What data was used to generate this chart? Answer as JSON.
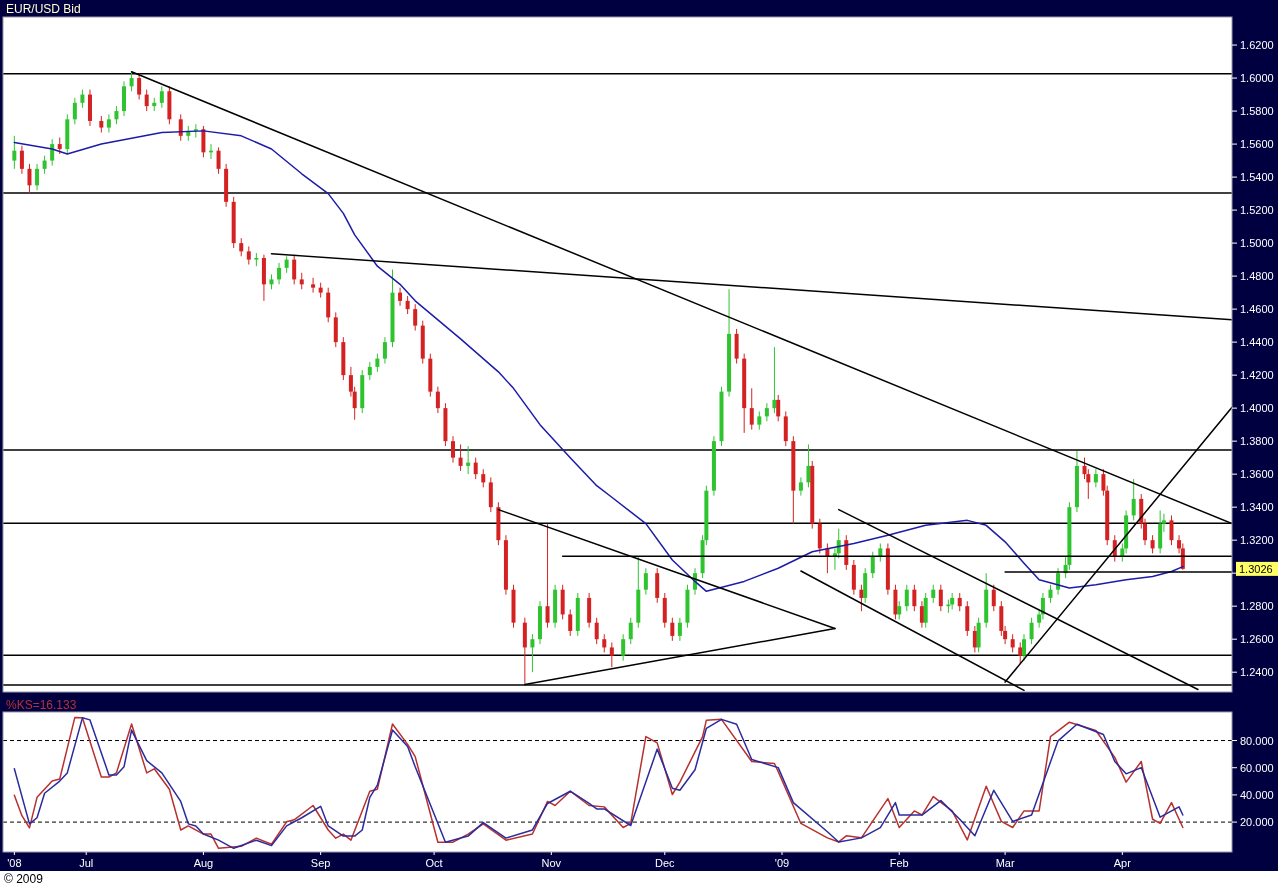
{
  "chart_data": [
    {
      "type": "candlestick",
      "title": "EUR/USD Bid",
      "tick_labels": "y",
      "x": [
        "2008-06-12",
        "2008-06-14",
        "2008-06-16",
        "2008-06-18",
        "2008-06-20",
        "2008-06-22",
        "2008-06-24",
        "2008-06-26",
        "2008-06-28",
        "2008-06-30",
        "2008-07-02",
        "2008-07-05",
        "2008-07-07",
        "2008-07-09",
        "2008-07-11",
        "2008-07-13",
        "2008-07-15",
        "2008-07-17",
        "2008-07-19",
        "2008-07-21",
        "2008-07-23",
        "2008-07-26",
        "2008-07-28",
        "2008-07-30",
        "2008-08-01",
        "2008-08-03",
        "2008-08-05",
        "2008-08-07",
        "2008-08-09",
        "2008-08-11",
        "2008-08-13",
        "2008-08-15",
        "2008-08-17",
        "2008-08-19",
        "2008-08-21",
        "2008-08-23",
        "2008-08-25",
        "2008-08-27",
        "2008-08-30",
        "2008-09-01",
        "2008-09-03",
        "2008-09-05",
        "2008-09-07",
        "2008-09-09",
        "2008-09-10",
        "2008-09-12",
        "2008-09-14",
        "2008-09-16",
        "2008-09-18",
        "2008-09-20",
        "2008-09-22",
        "2008-09-24",
        "2008-09-26",
        "2008-09-28",
        "2008-09-30",
        "2008-10-02",
        "2008-10-04",
        "2008-10-06",
        "2008-10-08",
        "2008-10-10",
        "2008-10-12",
        "2008-10-14",
        "2008-10-16",
        "2008-10-18",
        "2008-10-20",
        "2008-10-22",
        "2008-10-25",
        "2008-10-27",
        "2008-10-29",
        "2008-10-31",
        "2008-11-02",
        "2008-11-04",
        "2008-11-06",
        "2008-11-08",
        "2008-11-11",
        "2008-11-13",
        "2008-11-15",
        "2008-11-17",
        "2008-11-20",
        "2008-11-22",
        "2008-11-24",
        "2008-11-26",
        "2008-11-29",
        "2008-12-01",
        "2008-12-03",
        "2008-12-05",
        "2008-12-07",
        "2008-12-09",
        "2008-12-11",
        "2008-12-12",
        "2008-12-14",
        "2008-12-16",
        "2008-12-18",
        "2008-12-20",
        "2008-12-22",
        "2008-12-24",
        "2008-12-26",
        "2008-12-28",
        "2008-12-30",
        "2008-12-31",
        "2009-01-02",
        "2009-01-04",
        "2009-01-06",
        "2009-01-08",
        "2009-01-09",
        "2009-01-11",
        "2009-01-13",
        "2009-01-15",
        "2009-01-16",
        "2009-01-18",
        "2009-01-20",
        "2009-01-22",
        "2009-01-23",
        "2009-01-25",
        "2009-01-27",
        "2009-01-29",
        "2009-01-31",
        "2009-02-01",
        "2009-02-03",
        "2009-02-05",
        "2009-02-07",
        "2009-02-08",
        "2009-02-10",
        "2009-02-12",
        "2009-02-14",
        "2009-02-15",
        "2009-02-17",
        "2009-02-19",
        "2009-02-21",
        "2009-02-22",
        "2009-02-24",
        "2009-02-26",
        "2009-02-28",
        "2009-03-01",
        "2009-03-03",
        "2009-03-05",
        "2009-03-06",
        "2009-03-08",
        "2009-03-10",
        "2009-03-11",
        "2009-03-13",
        "2009-03-15",
        "2009-03-17",
        "2009-03-18",
        "2009-03-20",
        "2009-03-22",
        "2009-03-23",
        "2009-03-25",
        "2009-03-27",
        "2009-03-28",
        "2009-03-30",
        "2009-04-01",
        "2009-04-02",
        "2009-04-04",
        "2009-04-06",
        "2009-04-07",
        "2009-04-09",
        "2009-04-11",
        "2009-04-12",
        "2009-04-14",
        "2009-04-16",
        "2009-04-17"
      ],
      "ohlc": [
        [
          1.55,
          1.565,
          1.545,
          1.556
        ],
        [
          1.556,
          1.559,
          1.542,
          1.545
        ],
        [
          1.545,
          1.548,
          1.53,
          1.535
        ],
        [
          1.535,
          1.548,
          1.532,
          1.545
        ],
        [
          1.545,
          1.553,
          1.542,
          1.55
        ],
        [
          1.55,
          1.563,
          1.547,
          1.56
        ],
        [
          1.56,
          1.564,
          1.554,
          1.557
        ],
        [
          1.557,
          1.578,
          1.554,
          1.575
        ],
        [
          1.575,
          1.588,
          1.572,
          1.585
        ],
        [
          1.585,
          1.593,
          1.582,
          1.59
        ],
        [
          1.59,
          1.593,
          1.571,
          1.574
        ],
        [
          1.574,
          1.577,
          1.567,
          1.57
        ],
        [
          1.57,
          1.578,
          1.567,
          1.575
        ],
        [
          1.575,
          1.583,
          1.572,
          1.58
        ],
        [
          1.58,
          1.598,
          1.577,
          1.595
        ],
        [
          1.595,
          1.6038,
          1.592,
          1.6
        ],
        [
          1.6,
          1.603,
          1.587,
          1.59
        ],
        [
          1.59,
          1.593,
          1.58,
          1.583
        ],
        [
          1.583,
          1.588,
          1.58,
          1.585
        ],
        [
          1.585,
          1.595,
          1.582,
          1.592
        ],
        [
          1.592,
          1.595,
          1.572,
          1.575
        ],
        [
          1.575,
          1.578,
          1.562,
          1.565
        ],
        [
          1.565,
          1.571,
          1.562,
          1.568
        ],
        [
          1.568,
          1.572,
          1.564,
          1.569
        ],
        [
          1.569,
          1.571,
          1.552,
          1.555
        ],
        [
          1.555,
          1.56,
          1.551,
          1.556
        ],
        [
          1.556,
          1.558,
          1.542,
          1.545
        ],
        [
          1.545,
          1.548,
          1.522,
          1.525
        ],
        [
          1.525,
          1.528,
          1.497,
          1.5
        ],
        [
          1.5,
          1.503,
          1.492,
          1.495
        ],
        [
          1.495,
          1.498,
          1.487,
          1.49
        ],
        [
          1.49,
          1.494,
          1.486,
          1.491
        ],
        [
          1.491,
          1.493,
          1.465,
          1.475
        ],
        [
          1.475,
          1.481,
          1.472,
          1.478
        ],
        [
          1.478,
          1.488,
          1.475,
          1.485
        ],
        [
          1.485,
          1.492,
          1.482,
          1.49
        ],
        [
          1.49,
          1.493,
          1.475,
          1.478
        ],
        [
          1.478,
          1.482,
          1.472,
          1.475
        ],
        [
          1.475,
          1.479,
          1.47,
          1.473
        ],
        [
          1.473,
          1.476,
          1.467,
          1.47
        ],
        [
          1.47,
          1.473,
          1.452,
          1.455
        ],
        [
          1.455,
          1.458,
          1.437,
          1.44
        ],
        [
          1.44,
          1.443,
          1.417,
          1.42
        ],
        [
          1.42,
          1.425,
          1.407,
          1.41
        ],
        [
          1.41,
          1.413,
          1.393,
          1.4
        ],
        [
          1.4,
          1.423,
          1.397,
          1.42
        ],
        [
          1.42,
          1.428,
          1.417,
          1.425
        ],
        [
          1.425,
          1.433,
          1.422,
          1.43
        ],
        [
          1.43,
          1.443,
          1.427,
          1.44
        ],
        [
          1.44,
          1.484,
          1.437,
          1.47
        ],
        [
          1.47,
          1.473,
          1.462,
          1.465
        ],
        [
          1.465,
          1.468,
          1.457,
          1.46
        ],
        [
          1.46,
          1.463,
          1.447,
          1.45
        ],
        [
          1.45,
          1.453,
          1.427,
          1.43
        ],
        [
          1.43,
          1.433,
          1.407,
          1.41
        ],
        [
          1.41,
          1.413,
          1.397,
          1.4
        ],
        [
          1.4,
          1.403,
          1.377,
          1.38
        ],
        [
          1.38,
          1.383,
          1.367,
          1.37
        ],
        [
          1.37,
          1.378,
          1.362,
          1.365
        ],
        [
          1.365,
          1.377,
          1.36,
          1.367
        ],
        [
          1.367,
          1.37,
          1.357,
          1.36
        ],
        [
          1.36,
          1.363,
          1.352,
          1.355
        ],
        [
          1.355,
          1.358,
          1.337,
          1.34
        ],
        [
          1.34,
          1.343,
          1.317,
          1.32
        ],
        [
          1.32,
          1.323,
          1.287,
          1.29
        ],
        [
          1.29,
          1.293,
          1.267,
          1.27
        ],
        [
          1.27,
          1.273,
          1.233,
          1.255
        ],
        [
          1.255,
          1.263,
          1.24,
          1.26
        ],
        [
          1.26,
          1.283,
          1.257,
          1.28
        ],
        [
          1.28,
          1.33,
          1.267,
          1.27
        ],
        [
          1.27,
          1.293,
          1.267,
          1.29
        ],
        [
          1.29,
          1.293,
          1.272,
          1.275
        ],
        [
          1.275,
          1.278,
          1.262,
          1.265
        ],
        [
          1.265,
          1.288,
          1.262,
          1.285
        ],
        [
          1.285,
          1.288,
          1.267,
          1.27
        ],
        [
          1.27,
          1.273,
          1.257,
          1.26
        ],
        [
          1.26,
          1.263,
          1.252,
          1.255
        ],
        [
          1.255,
          1.258,
          1.243,
          1.25
        ],
        [
          1.25,
          1.263,
          1.247,
          1.26
        ],
        [
          1.26,
          1.273,
          1.257,
          1.27
        ],
        [
          1.27,
          1.31,
          1.267,
          1.29
        ],
        [
          1.29,
          1.303,
          1.287,
          1.3
        ],
        [
          1.3,
          1.303,
          1.282,
          1.285
        ],
        [
          1.285,
          1.288,
          1.267,
          1.27
        ],
        [
          1.27,
          1.273,
          1.259,
          1.262
        ],
        [
          1.262,
          1.273,
          1.259,
          1.27
        ],
        [
          1.27,
          1.293,
          1.267,
          1.29
        ],
        [
          1.29,
          1.303,
          1.287,
          1.3
        ],
        [
          1.3,
          1.323,
          1.297,
          1.32
        ],
        [
          1.32,
          1.353,
          1.317,
          1.35
        ],
        [
          1.35,
          1.383,
          1.347,
          1.38
        ],
        [
          1.38,
          1.413,
          1.377,
          1.41
        ],
        [
          1.41,
          1.472,
          1.407,
          1.445
        ],
        [
          1.445,
          1.448,
          1.427,
          1.43
        ],
        [
          1.43,
          1.433,
          1.385,
          1.4
        ],
        [
          1.4,
          1.412,
          1.387,
          1.39
        ],
        [
          1.39,
          1.398,
          1.387,
          1.395
        ],
        [
          1.395,
          1.403,
          1.392,
          1.4
        ],
        [
          1.4,
          1.437,
          1.397,
          1.405
        ],
        [
          1.405,
          1.408,
          1.392,
          1.395
        ],
        [
          1.395,
          1.398,
          1.377,
          1.38
        ],
        [
          1.38,
          1.383,
          1.33,
          1.35
        ],
        [
          1.35,
          1.358,
          1.347,
          1.355
        ],
        [
          1.355,
          1.378,
          1.352,
          1.365
        ],
        [
          1.365,
          1.368,
          1.327,
          1.33
        ],
        [
          1.33,
          1.333,
          1.312,
          1.315
        ],
        [
          1.315,
          1.318,
          1.3,
          1.31
        ],
        [
          1.31,
          1.315,
          1.302,
          1.312
        ],
        [
          1.312,
          1.327,
          1.309,
          1.32
        ],
        [
          1.32,
          1.323,
          1.302,
          1.305
        ],
        [
          1.305,
          1.308,
          1.287,
          1.29
        ],
        [
          1.29,
          1.293,
          1.277,
          1.285
        ],
        [
          1.285,
          1.303,
          1.282,
          1.3
        ],
        [
          1.3,
          1.313,
          1.297,
          1.31
        ],
        [
          1.31,
          1.318,
          1.307,
          1.315
        ],
        [
          1.315,
          1.318,
          1.287,
          1.29
        ],
        [
          1.29,
          1.293,
          1.272,
          1.275
        ],
        [
          1.275,
          1.283,
          1.272,
          1.28
        ],
        [
          1.28,
          1.293,
          1.277,
          1.29
        ],
        [
          1.29,
          1.293,
          1.277,
          1.28
        ],
        [
          1.28,
          1.283,
          1.267,
          1.27
        ],
        [
          1.27,
          1.288,
          1.267,
          1.285
        ],
        [
          1.285,
          1.293,
          1.282,
          1.29
        ],
        [
          1.29,
          1.293,
          1.277,
          1.28
        ],
        [
          1.28,
          1.284,
          1.276,
          1.281
        ],
        [
          1.281,
          1.288,
          1.278,
          1.285
        ],
        [
          1.285,
          1.288,
          1.277,
          1.28
        ],
        [
          1.28,
          1.283,
          1.262,
          1.265
        ],
        [
          1.265,
          1.268,
          1.252,
          1.255
        ],
        [
          1.255,
          1.273,
          1.252,
          1.27
        ],
        [
          1.27,
          1.3,
          1.267,
          1.29
        ],
        [
          1.29,
          1.293,
          1.277,
          1.28
        ],
        [
          1.28,
          1.283,
          1.262,
          1.265
        ],
        [
          1.265,
          1.268,
          1.257,
          1.26
        ],
        [
          1.26,
          1.263,
          1.252,
          1.255
        ],
        [
          1.255,
          1.258,
          1.245,
          1.25
        ],
        [
          1.25,
          1.263,
          1.247,
          1.26
        ],
        [
          1.26,
          1.273,
          1.257,
          1.27
        ],
        [
          1.27,
          1.278,
          1.267,
          1.275
        ],
        [
          1.275,
          1.288,
          1.272,
          1.285
        ],
        [
          1.285,
          1.293,
          1.282,
          1.29
        ],
        [
          1.29,
          1.303,
          1.287,
          1.3
        ],
        [
          1.3,
          1.31,
          1.297,
          1.305
        ],
        [
          1.305,
          1.343,
          1.302,
          1.34
        ],
        [
          1.34,
          1.374,
          1.337,
          1.365
        ],
        [
          1.365,
          1.37,
          1.357,
          1.36
        ],
        [
          1.36,
          1.363,
          1.345,
          1.355
        ],
        [
          1.355,
          1.363,
          1.352,
          1.36
        ],
        [
          1.36,
          1.363,
          1.347,
          1.35
        ],
        [
          1.35,
          1.353,
          1.317,
          1.32
        ],
        [
          1.32,
          1.323,
          1.307,
          1.31
        ],
        [
          1.31,
          1.318,
          1.307,
          1.315
        ],
        [
          1.315,
          1.338,
          1.312,
          1.335
        ],
        [
          1.335,
          1.357,
          1.332,
          1.345
        ],
        [
          1.345,
          1.348,
          1.327,
          1.33
        ],
        [
          1.33,
          1.333,
          1.317,
          1.32
        ],
        [
          1.32,
          1.323,
          1.312,
          1.315
        ],
        [
          1.315,
          1.338,
          1.312,
          1.33
        ],
        [
          1.33,
          1.336,
          1.325,
          1.332
        ],
        [
          1.332,
          1.335,
          1.317,
          1.32
        ],
        [
          1.32,
          1.323,
          1.312,
          1.315
        ],
        [
          1.315,
          1.318,
          1.302,
          1.3026
        ]
      ],
      "series": [
        {
          "type": "line",
          "color": "#1c1ca8",
          "x": [
            "2008-06-12",
            "2008-06-22",
            "2008-06-26",
            "2008-07-05",
            "2008-07-21",
            "2008-08-01",
            "2008-08-11",
            "2008-08-19",
            "2008-08-27",
            "2008-09-03",
            "2008-09-07",
            "2008-09-10",
            "2008-09-16",
            "2008-09-22",
            "2008-09-26",
            "2008-10-08",
            "2008-10-18",
            "2008-10-22",
            "2008-10-29",
            "2008-11-06",
            "2008-11-13",
            "2008-11-17",
            "2008-11-26",
            "2008-12-03",
            "2008-12-09",
            "2008-12-12",
            "2008-12-22",
            "2008-12-31",
            "2009-01-09",
            "2009-01-20",
            "2009-01-29",
            "2009-02-08",
            "2009-02-19",
            "2009-02-24",
            "2009-03-01",
            "2009-03-06",
            "2009-03-10",
            "2009-03-18",
            "2009-03-25",
            "2009-04-02",
            "2009-04-09",
            "2009-04-14",
            "2009-04-17"
          ],
          "values": [
            1.561,
            1.557,
            1.554,
            1.56,
            1.567,
            1.568,
            1.565,
            1.557,
            1.542,
            1.53,
            1.518,
            1.505,
            1.486,
            1.475,
            1.465,
            1.442,
            1.422,
            1.412,
            1.39,
            1.37,
            1.353,
            1.346,
            1.33,
            1.308,
            1.295,
            1.289,
            1.295,
            1.303,
            1.313,
            1.318,
            1.323,
            1.329,
            1.332,
            1.329,
            1.319,
            1.306,
            1.296,
            1.291,
            1.293,
            1.296,
            1.298,
            1.301,
            1.304
          ]
        },
        {
          "type": "line",
          "color": "#000000",
          "x": [
            "2008-07-13",
            "2009-04-30"
          ],
          "values": [
            1.6038,
            1.33
          ]
        },
        {
          "type": "line",
          "color": "#000000",
          "x": [
            "2008-08-19",
            "2009-04-30"
          ],
          "values": [
            1.4935,
            1.4535
          ]
        },
        {
          "type": "line",
          "color": "#000000",
          "x": [
            "2008-10-18",
            "2009-01-15"
          ],
          "values": [
            1.3385,
            1.2665
          ]
        },
        {
          "type": "line",
          "color": "#000000",
          "x": [
            "2008-10-25",
            "2009-01-15"
          ],
          "values": [
            1.2325,
            1.2665
          ]
        },
        {
          "type": "line",
          "color": "#000000",
          "x": [
            "2008-11-04",
            "2009-04-30"
          ],
          "values": [
            1.3103,
            1.3103
          ]
        },
        {
          "type": "line",
          "color": "#000000",
          "x": [
            "2009-03-01",
            "2009-04-30"
          ],
          "values": [
            1.3007,
            1.3007
          ]
        },
        {
          "type": "line",
          "color": "#000000",
          "x": [
            "2009-01-16",
            "2009-04-21"
          ],
          "values": [
            1.3385,
            1.2295
          ]
        },
        {
          "type": "line",
          "color": "#000000",
          "x": [
            "2009-01-06",
            "2009-03-06"
          ],
          "values": [
            1.3013,
            1.229
          ]
        },
        {
          "type": "line",
          "color": "#000000",
          "x": [
            "2009-03-01",
            "2009-04-30"
          ],
          "values": [
            1.234,
            1.4005
          ]
        }
      ],
      "ref_lines": [
        {
          "axis": "y",
          "value": 1.6026,
          "color": "#000000"
        },
        {
          "axis": "y",
          "value": 1.5304,
          "color": "#000000"
        },
        {
          "axis": "y",
          "value": 1.3747,
          "color": "#000000"
        },
        {
          "axis": "y",
          "value": 1.3302,
          "color": "#000000"
        },
        {
          "axis": "y",
          "value": 1.2502,
          "color": "#000000"
        },
        {
          "axis": "y",
          "value": 1.2322,
          "color": "#000000"
        }
      ],
      "xlim": [
        "2008-06-09",
        "2009-04-30"
      ],
      "ylim": [
        1.228,
        1.637
      ],
      "yticks": [
        {
          "value": 1.24,
          "label": "1.2400"
        },
        {
          "value": 1.26,
          "label": "1.2600"
        },
        {
          "value": 1.28,
          "label": "1.2800"
        },
        {
          "value": 1.3,
          "label": null
        },
        {
          "value": 1.32,
          "label": "1.3200"
        },
        {
          "value": 1.34,
          "label": "1.3400"
        },
        {
          "value": 1.36,
          "label": "1.3600"
        },
        {
          "value": 1.38,
          "label": "1.3800"
        },
        {
          "value": 1.4,
          "label": "1.4000"
        },
        {
          "value": 1.42,
          "label": "1.4200"
        },
        {
          "value": 1.44,
          "label": "1.4400"
        },
        {
          "value": 1.46,
          "label": "1.4600"
        },
        {
          "value": 1.48,
          "label": "1.4800"
        },
        {
          "value": 1.5,
          "label": "1.5000"
        },
        {
          "value": 1.52,
          "label": "1.5200"
        },
        {
          "value": 1.54,
          "label": "1.5400"
        },
        {
          "value": 1.56,
          "label": "1.5600"
        },
        {
          "value": 1.58,
          "label": "1.5800"
        },
        {
          "value": 1.6,
          "label": "1.6000"
        },
        {
          "value": 1.62,
          "label": "1.6200"
        }
      ],
      "annotations": [
        "1.3026"
      ]
    },
    {
      "type": "line",
      "series": [
        {
          "name": "%KS=16.133",
          "color": "#b8312f",
          "x": [
            "2008-06-12",
            "2008-06-14",
            "2008-06-16",
            "2008-06-18",
            "2008-06-22",
            "2008-06-24",
            "2008-06-28",
            "2008-06-30",
            "2008-07-05",
            "2008-07-07",
            "2008-07-09",
            "2008-07-13",
            "2008-07-17",
            "2008-07-19",
            "2008-07-23",
            "2008-07-26",
            "2008-07-28",
            "2008-08-01",
            "2008-08-03",
            "2008-08-05",
            "2008-08-11",
            "2008-08-15",
            "2008-08-19",
            "2008-08-23",
            "2008-08-25",
            "2008-08-30",
            "2008-09-03",
            "2008-09-05",
            "2008-09-07",
            "2008-09-09",
            "2008-09-14",
            "2008-09-16",
            "2008-09-20",
            "2008-09-24",
            "2008-09-26",
            "2008-10-02",
            "2008-10-06",
            "2008-10-10",
            "2008-10-14",
            "2008-10-20",
            "2008-10-27",
            "2008-10-31",
            "2008-11-02",
            "2008-11-06",
            "2008-11-11",
            "2008-11-15",
            "2008-11-20",
            "2008-11-22",
            "2008-11-26",
            "2008-11-29",
            "2008-12-03",
            "2008-12-05",
            "2008-12-11",
            "2008-12-12",
            "2008-12-16",
            "2008-12-24",
            "2008-12-30",
            "2008-12-31",
            "2009-01-06",
            "2009-01-13",
            "2009-01-16",
            "2009-01-18",
            "2009-01-22",
            "2009-01-29",
            "2009-02-01",
            "2009-02-05",
            "2009-02-07",
            "2009-02-10",
            "2009-02-15",
            "2009-02-19",
            "2009-02-24",
            "2009-02-28",
            "2009-03-03",
            "2009-03-06",
            "2009-03-10",
            "2009-03-13",
            "2009-03-18",
            "2009-03-25",
            "2009-03-30",
            "2009-04-02",
            "2009-04-06",
            "2009-04-09",
            "2009-04-11",
            "2009-04-14",
            "2009-04-17"
          ],
          "values": [
            39.7,
            24.7,
            15.7,
            38.2,
            50.2,
            51.7,
            97,
            96.7,
            53.2,
            53.2,
            56.2,
            92.2,
            56.2,
            59.2,
            44.2,
            14.2,
            17.2,
            11.2,
            11.2,
            0.7,
            2.2,
            8.2,
            3.7,
            20.2,
            21.7,
            32.2,
            14.2,
            8.2,
            11.2,
            6.7,
            42.7,
            44.2,
            92.2,
            77.2,
            68.2,
            5.2,
            5.2,
            11.2,
            18.7,
            6.7,
            11.2,
            35.2,
            32.2,
            42.7,
            32.2,
            31.2,
            16,
            19,
            82.9,
            78.3,
            40.3,
            49.4,
            82.9,
            95,
            95.6,
            64.6,
            63.1,
            57,
            19,
            8.4,
            5.4,
            9.9,
            8.4,
            37.3,
            16,
            28.2,
            25.2,
            38.8,
            28.2,
            6.9,
            46.4,
            20.5,
            16,
            28.2,
            28.2,
            82.9,
            93.5,
            87.4,
            67.6,
            49.4,
            64.6,
            22.1,
            19,
            34.3,
            16
          ]
        },
        {
          "color": "#2b2b9e",
          "x": [
            "2008-06-12",
            "2008-06-16",
            "2008-06-18",
            "2008-06-20",
            "2008-06-24",
            "2008-06-26",
            "2008-06-30",
            "2008-07-02",
            "2008-07-07",
            "2008-07-09",
            "2008-07-11",
            "2008-07-13",
            "2008-07-17",
            "2008-07-21",
            "2008-07-26",
            "2008-07-28",
            "2008-07-30",
            "2008-08-01",
            "2008-08-05",
            "2008-08-09",
            "2008-08-15",
            "2008-08-19",
            "2008-08-23",
            "2008-08-27",
            "2008-09-01",
            "2008-09-03",
            "2008-09-07",
            "2008-09-10",
            "2008-09-12",
            "2008-09-14",
            "2008-09-16",
            "2008-09-20",
            "2008-09-24",
            "2008-09-26",
            "2008-10-04",
            "2008-10-10",
            "2008-10-14",
            "2008-10-20",
            "2008-10-27",
            "2008-10-31",
            "2008-11-06",
            "2008-11-11",
            "2008-11-13",
            "2008-11-15",
            "2008-11-22",
            "2008-11-29",
            "2008-12-03",
            "2008-12-05",
            "2008-12-09",
            "2008-12-12",
            "2008-12-16",
            "2008-12-20",
            "2008-12-24",
            "2008-12-31",
            "2009-01-04",
            "2009-01-13",
            "2009-01-16",
            "2009-01-22",
            "2009-01-27",
            "2009-01-31",
            "2009-02-01",
            "2009-02-07",
            "2009-02-12",
            "2009-02-17",
            "2009-02-21",
            "2009-02-26",
            "2009-03-03",
            "2009-03-08",
            "2009-03-15",
            "2009-03-20",
            "2009-03-27",
            "2009-03-30",
            "2009-04-02",
            "2009-04-06",
            "2009-04-11",
            "2009-04-16",
            "2009-04-17"
          ],
          "values": [
            59.2,
            18.7,
            23.2,
            41.2,
            50.2,
            56.2,
            96.7,
            95.2,
            54.7,
            54.7,
            60.7,
            87.7,
            65.2,
            56.2,
            35.2,
            18.7,
            17.2,
            11.2,
            6.7,
            0.7,
            6.7,
            2.7,
            17.2,
            23.2,
            31.6,
            17.2,
            9.7,
            9.7,
            14.2,
            38.2,
            47.2,
            87.7,
            75.7,
            60.7,
            5.2,
            9.7,
            19.6,
            8.2,
            14.2,
            33.7,
            42.7,
            33.7,
            29.7,
            29.7,
            17.5,
            73.7,
            44.9,
            43.4,
            58.5,
            89,
            95.6,
            92,
            66.1,
            60.1,
            34.3,
            12.9,
            5.4,
            8.4,
            16,
            34.3,
            25.2,
            25.2,
            35.8,
            22.1,
            9.9,
            43.4,
            20.5,
            25.2,
            79.8,
            92,
            84.4,
            64.6,
            55.5,
            60.1,
            23.6,
            31.2,
            25.2
          ]
        }
      ],
      "ref_lines": [
        {
          "axis": "y",
          "value": 80,
          "color": "#000000",
          "line_style": "dashed"
        },
        {
          "axis": "y",
          "value": 20,
          "color": "#000000",
          "line_style": "dashed"
        }
      ],
      "xlim": [
        "2008-06-09",
        "2009-04-30"
      ],
      "xticks": [
        {
          "value": "2008-06-12",
          "label": "'08"
        },
        {
          "value": "2008-07-01",
          "label": "Jul"
        },
        {
          "value": "2008-08-01",
          "label": "Aug"
        },
        {
          "value": "2008-09-01",
          "label": "Sep"
        },
        {
          "value": "2008-10-01",
          "label": "Oct"
        },
        {
          "value": "2008-11-01",
          "label": "Nov"
        },
        {
          "value": "2008-12-01",
          "label": "Dec"
        },
        {
          "value": "2009-01-01",
          "label": "'09"
        },
        {
          "value": "2009-02-01",
          "label": "Feb"
        },
        {
          "value": "2009-03-01",
          "label": "Mar"
        },
        {
          "value": "2009-04-01",
          "label": "Apr"
        }
      ],
      "ylim": [
        -2,
        101
      ],
      "yticks": [
        {
          "value": 20,
          "label": "20.000"
        },
        {
          "value": 40,
          "label": "40.000"
        },
        {
          "value": 60,
          "label": "60.000"
        },
        {
          "value": 80,
          "label": "80.000"
        }
      ],
      "annotations": [
        "© 2009"
      ]
    }
  ]
}
